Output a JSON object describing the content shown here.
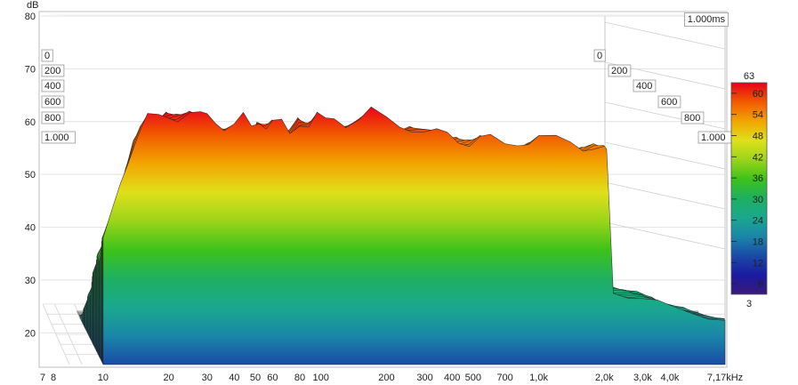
{
  "chart_data": {
    "type": "area",
    "subtype": "waterfall-3d",
    "ylabel": "dB",
    "y_ticks": [
      "80",
      "70",
      "60",
      "50",
      "40",
      "30",
      "20"
    ],
    "ylim": [
      14,
      80
    ],
    "x_ticks": [
      "7",
      "8",
      "10",
      "20",
      "30",
      "40",
      "50",
      "60",
      "80",
      "100",
      "200",
      "300",
      "400",
      "500",
      "700",
      "1,0k",
      "2,0k",
      "3,0k",
      "4,0k",
      "7,17kHz"
    ],
    "x_tick_values": [
      7,
      8,
      10,
      20,
      30,
      40,
      50,
      60,
      80,
      100,
      200,
      300,
      400,
      500,
      700,
      1000,
      2000,
      3000,
      4000,
      7170
    ],
    "time_label": "1.000ms",
    "time_ticks_left": [
      "0",
      "200",
      "400",
      "600",
      "800",
      "1.000"
    ],
    "time_ticks_right": [
      "0",
      "200",
      "400",
      "600",
      "800",
      "1.000"
    ],
    "colorbar": {
      "max_label": "63",
      "min_label": "3",
      "ticks": [
        "60",
        "54",
        "48",
        "42",
        "36",
        "30",
        "24",
        "18",
        "12",
        "6"
      ],
      "colors": [
        "#e8001a",
        "#f25a00",
        "#f2a500",
        "#dfe01a",
        "#9bd41a",
        "#3ec21a",
        "#1eb060",
        "#1aa88e",
        "#1a86a8",
        "#1a4aa6",
        "#1a1aa0",
        "#3a1a7a"
      ]
    },
    "front_slice": {
      "freq": [
        10,
        11,
        12,
        13,
        14,
        15,
        16,
        18,
        20,
        22,
        25,
        28,
        30,
        33,
        36,
        40,
        44,
        48,
        52,
        56,
        60,
        66,
        72,
        80,
        88,
        96,
        105,
        115,
        130,
        150,
        170,
        200,
        230,
        260,
        300,
        340,
        380,
        430,
        480,
        540,
        600,
        700,
        800,
        900,
        1000,
        1200,
        1400,
        1600,
        1800,
        2000,
        2050,
        2200,
        2600,
        3000,
        3500,
        4000,
        5000,
        6000,
        7170
      ],
      "db": [
        38,
        42,
        47,
        52,
        56,
        58,
        60,
        61,
        62,
        61.5,
        62,
        61.5,
        62,
        61,
        59,
        58.5,
        60,
        58.5,
        60,
        58.5,
        59,
        59.5,
        58.5,
        61,
        60,
        61.5,
        60.5,
        61.5,
        60,
        60,
        61,
        59.5,
        59,
        58.5,
        57.5,
        57.5,
        58,
        57.5,
        57,
        57.5,
        57,
        56,
        56.5,
        56,
        56,
        55.5,
        55.5,
        55,
        55,
        54.5,
        54.5,
        28,
        27.5,
        27,
        26,
        25,
        24,
        23,
        22
      ]
    }
  }
}
